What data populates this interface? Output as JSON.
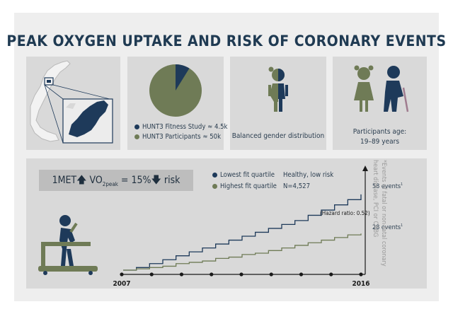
{
  "header": {
    "title": "PEAK OXYGEN UPTAKE AND RISK OF CORONARY EVENTS"
  },
  "panels": {
    "pie": {
      "legend": [
        {
          "label": "HUNT3 Fitness Study ≈ 4.5k",
          "color": "#1e3a5a"
        },
        {
          "label": "HUNT3 Participants ≈ 50k",
          "color": "#6f7b56"
        }
      ]
    },
    "gender": {
      "caption": "Balanced gender distribution"
    },
    "age": {
      "caption_line1": "Participants age:",
      "caption_line2": "19–89 years"
    }
  },
  "formula": {
    "left": "1MET",
    "vo": "VO",
    "sub": "2peak",
    "mid": " = 15%",
    "right": " risk"
  },
  "chart_legend": {
    "series_low": "Lowest fit quartile",
    "series_high": "Highest fit quartile",
    "note_line1": "Healthy, low risk",
    "note_line2": "N=4,527"
  },
  "side_note": "*Events of fatal or non-fatal coronary heart disease, PCI or CABG",
  "colors": {
    "dark_blue": "#1e3a5a",
    "olive": "#6f7b56",
    "panel": "#d9d9d9",
    "frame": "#eeeeee"
  },
  "chart_data": {
    "type": "line",
    "x_start_label": "2007",
    "x_end_label": "2016",
    "xlim": [
      2007,
      2016
    ],
    "ylim": [
      0,
      65
    ],
    "hazard_ratio": "(Hazard ratio: 0.52)",
    "series": [
      {
        "name": "Lowest fit quartile",
        "end_label": "58 events",
        "x": [
          2007,
          2007.5,
          2008,
          2008.5,
          2009,
          2009.5,
          2010,
          2010.5,
          2011,
          2011.5,
          2012,
          2012.5,
          2013,
          2013.5,
          2014,
          2014.5,
          2015,
          2015.5,
          2016
        ],
        "y": [
          0,
          2,
          5,
          8,
          11,
          14,
          17,
          20,
          23,
          26,
          29,
          32,
          35,
          38,
          42,
          46,
          50,
          54,
          58
        ]
      },
      {
        "name": "Highest fit quartile",
        "end_label": "28 events",
        "x": [
          2007,
          2007.5,
          2008,
          2008.5,
          2009,
          2009.5,
          2010,
          2010.5,
          2011,
          2011.5,
          2012,
          2012.5,
          2013,
          2013.5,
          2014,
          2014.5,
          2015,
          2015.5,
          2016
        ],
        "y": [
          0,
          1,
          2,
          3,
          5,
          6,
          7,
          9,
          10,
          12,
          13,
          15,
          17,
          19,
          21,
          23,
          25,
          27,
          28
        ]
      }
    ]
  }
}
